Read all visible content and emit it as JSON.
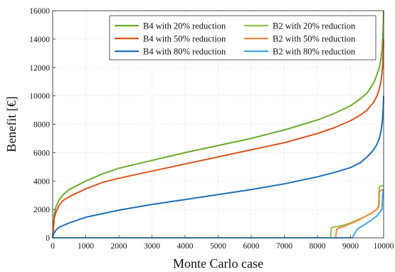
{
  "chart_data": {
    "type": "line",
    "title": "",
    "xlabel": "Monte Carlo case",
    "ylabel": "Benefit [€]",
    "xlim": [
      0,
      10000
    ],
    "ylim": [
      0,
      16000
    ],
    "x_ticks": [
      "0",
      "1000",
      "2000",
      "3000",
      "4000",
      "5000",
      "6000",
      "7000",
      "8000",
      "9000",
      "10000"
    ],
    "y_ticks": [
      "0",
      "2000",
      "4000",
      "6000",
      "8000",
      "10000",
      "12000",
      "14000",
      "16000"
    ],
    "grid": true,
    "legend_position": "top-right",
    "series": [
      {
        "name": "B4 with 20% reduction",
        "color": "#6aab2e",
        "x": [
          0,
          50,
          100,
          200,
          300,
          500,
          1000,
          1500,
          2000,
          3000,
          4000,
          5000,
          6000,
          7000,
          8000,
          8500,
          9000,
          9300,
          9500,
          9700,
          9800,
          9870,
          9920,
          9950,
          9975,
          9990,
          10000
        ],
        "y": [
          0,
          1700,
          2200,
          2700,
          3000,
          3400,
          4000,
          4500,
          4900,
          5450,
          6000,
          6500,
          7000,
          7600,
          8300,
          8750,
          9300,
          9800,
          10200,
          10900,
          11500,
          12000,
          12600,
          13200,
          14000,
          15000,
          16000
        ]
      },
      {
        "name": "B2 with 20% reduction",
        "color": "#8fc149",
        "x": [
          0,
          8400,
          8420,
          8450,
          8600,
          8800,
          9000,
          9200,
          9400,
          9600,
          9800,
          9850,
          9870,
          10000
        ],
        "y": [
          0,
          0,
          700,
          750,
          800,
          900,
          1050,
          1250,
          1450,
          1700,
          2000,
          2300,
          3600,
          3700
        ]
      },
      {
        "name": "B4 with 50% reduction",
        "color": "#d9541e",
        "x": [
          0,
          50,
          100,
          200,
          300,
          500,
          1000,
          1500,
          2000,
          3000,
          4000,
          5000,
          6000,
          7000,
          8000,
          8500,
          9000,
          9300,
          9500,
          9700,
          9800,
          9870,
          9920,
          9950,
          9975,
          9990,
          10000
        ],
        "y": [
          0,
          1400,
          1800,
          2300,
          2600,
          2900,
          3450,
          3900,
          4200,
          4700,
          5200,
          5700,
          6200,
          6700,
          7350,
          7750,
          8250,
          8650,
          9000,
          9550,
          10000,
          10500,
          11000,
          11600,
          12300,
          13100,
          14000
        ]
      },
      {
        "name": "B2 with 50% reduction",
        "color": "#f08a3c",
        "x": [
          0,
          8550,
          8580,
          8650,
          8800,
          9000,
          9200,
          9400,
          9600,
          9800,
          9860,
          9880,
          10000
        ],
        "y": [
          0,
          0,
          600,
          700,
          800,
          1000,
          1200,
          1450,
          1700,
          2000,
          2200,
          3300,
          3400
        ]
      },
      {
        "name": "B4 with 80% reduction",
        "color": "#1f6fb8",
        "x": [
          0,
          30,
          100,
          200,
          500,
          1000,
          2000,
          3000,
          4000,
          5000,
          6000,
          7000,
          8000,
          8500,
          9000,
          9300,
          9500,
          9700,
          9800,
          9870,
          9920,
          9950,
          9975,
          9990,
          10000
        ],
        "y": [
          0,
          300,
          550,
          750,
          1050,
          1450,
          1950,
          2350,
          2700,
          3050,
          3400,
          3800,
          4300,
          4600,
          4950,
          5300,
          5700,
          6200,
          6600,
          7000,
          7500,
          8000,
          8600,
          9200,
          10000
        ]
      },
      {
        "name": "B2 with 80% reduction",
        "color": "#42a5e8",
        "x": [
          0,
          9050,
          9100,
          9200,
          9400,
          9600,
          9800,
          9900,
          9950,
          9970,
          10000
        ],
        "y": [
          0,
          0,
          200,
          600,
          900,
          1200,
          1550,
          1850,
          2000,
          3000,
          3400
        ]
      }
    ]
  }
}
